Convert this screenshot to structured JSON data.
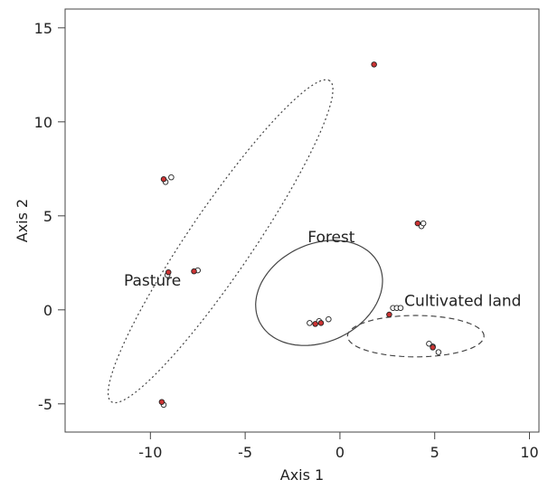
{
  "chart_data": {
    "type": "scatter",
    "xlabel": "Axis 1",
    "ylabel": "Axis 2",
    "xlim": [
      -14.5,
      10.5
    ],
    "ylim": [
      -6.5,
      16
    ],
    "xticks": [
      -10,
      -5,
      0,
      5,
      10
    ],
    "yticks": [
      -5,
      0,
      5,
      10,
      15
    ],
    "grid": false,
    "annotations": [
      {
        "text": "Pasture",
        "x": -11.4,
        "y": 1.3
      },
      {
        "text": "Forest",
        "x": -1.7,
        "y": 3.6
      },
      {
        "text": "Cultivated land",
        "x": 3.4,
        "y": 0.2
      }
    ],
    "ellipses": [
      {
        "label": "Pasture",
        "center": [
          -6.3,
          3.65
        ],
        "semi_axes": [
          10.3,
          1.7
        ],
        "rotation_deg": 56,
        "style": "dotted"
      },
      {
        "label": "Forest",
        "center": [
          -1.1,
          0.9
        ],
        "semi_axes": [
          3.5,
          2.6
        ],
        "rotation_deg": 26,
        "style": "solid"
      },
      {
        "label": "Cultivated land",
        "center": [
          4.0,
          -1.4
        ],
        "semi_axes": [
          3.6,
          1.1
        ],
        "rotation_deg": 0,
        "style": "dashed"
      }
    ],
    "series": [
      {
        "color": "#ffffff",
        "points": [
          [
            -9.2,
            6.8
          ],
          [
            -8.9,
            7.05
          ],
          [
            -7.5,
            2.1
          ],
          [
            -9.1,
            1.85
          ],
          [
            -9.3,
            -5.05
          ],
          [
            -1.6,
            -0.7
          ],
          [
            -1.1,
            -0.6
          ],
          [
            -0.6,
            -0.5
          ],
          [
            2.8,
            0.1
          ],
          [
            3.0,
            0.1
          ],
          [
            3.2,
            0.1
          ],
          [
            4.3,
            4.45
          ],
          [
            4.4,
            4.6
          ],
          [
            4.7,
            -1.8
          ],
          [
            4.9,
            -1.95
          ],
          [
            5.2,
            -2.25
          ]
        ]
      },
      {
        "color": "#cc3333",
        "points": [
          [
            1.8,
            13.05
          ],
          [
            -9.3,
            6.95
          ],
          [
            -7.7,
            2.05
          ],
          [
            -9.05,
            2.0
          ],
          [
            -9.4,
            -4.9
          ],
          [
            -1.3,
            -0.75
          ],
          [
            -1.0,
            -0.7
          ],
          [
            2.6,
            -0.25
          ],
          [
            4.1,
            4.6
          ],
          [
            4.9,
            -2.0
          ]
        ]
      }
    ]
  }
}
